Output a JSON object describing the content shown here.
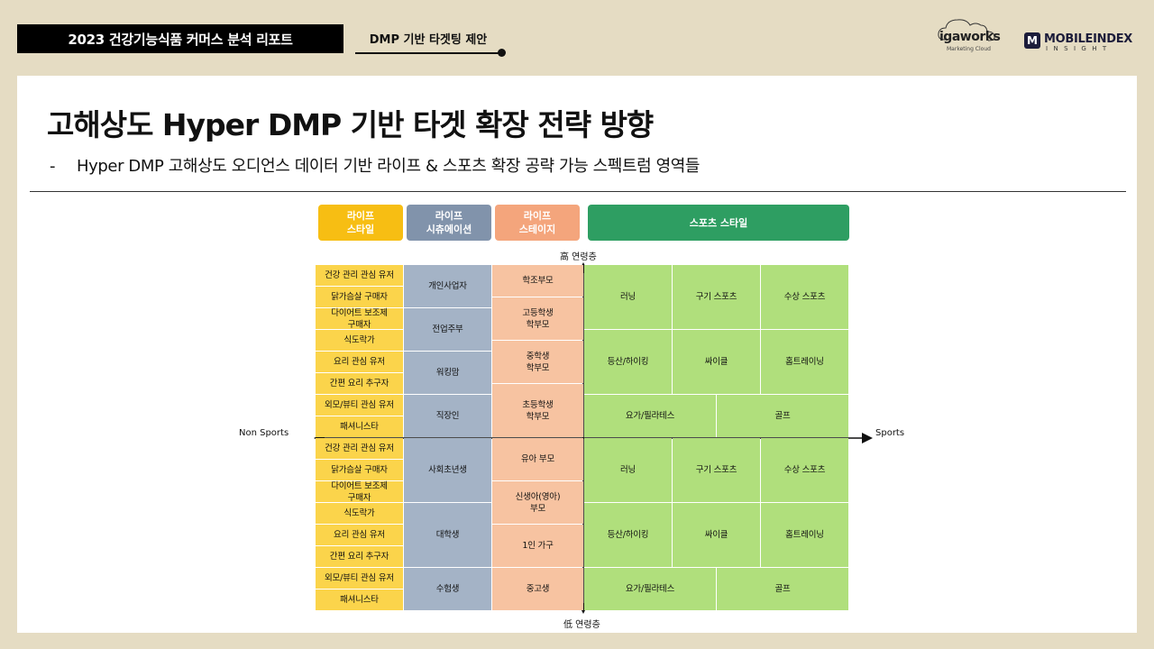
{
  "header": {
    "badge": "2023 건강기능식품 커머스 분석 리포트",
    "section": "DMP 기반 타겟팅 제안"
  },
  "logos": {
    "igaworks": {
      "word": "igaworks",
      "sub": "Marketing Cloud"
    },
    "mobileindex": {
      "mark": "M",
      "word": "MOBILEINDEX",
      "sub": "INSIGHT"
    }
  },
  "title": "고해상도 Hyper DMP 기반 타겟 확장 전략 방향",
  "subtitle": {
    "dash": "-",
    "text": "Hyper DMP 고해상도 오디언스 데이터 기반 라이프 & 스포츠 확장 공략 가능 스펙트럼 영역들"
  },
  "legend": {
    "life_style": "라이프\n스타일",
    "life_situation": "라이프\n시츄에이션",
    "life_stage": "라이프\n스테이지",
    "sports_style": "스포츠 스타일"
  },
  "colors": {
    "yellow": "#fbd44b",
    "blue": "#a4b3c6",
    "orange": "#f7c3a1",
    "green": "#b0df7c",
    "sports_legend": "#2e9e62"
  },
  "axes": {
    "top": "高 연령층",
    "bottom": "低 연령층",
    "left": "Non Sports",
    "right": "Sports"
  },
  "grid": {
    "life_style": [
      "건강 관리 관심 유저",
      "닭가슴살 구매자",
      "다이어트 보조제\n구매자",
      "식도락가",
      "요리 관심 유저",
      "간편 요리 추구자",
      "외모/뷰티 관심 유저",
      "패셔니스타",
      "건강 관리 관심 유저",
      "닭가슴살 구매자",
      "다이어트 보조제\n구매자",
      "식도락가",
      "요리 관심 유저",
      "간편 요리 추구자",
      "외모/뷰티 관심 유저",
      "패셔니스타"
    ],
    "life_situation": [
      "개인사업자",
      "전업주부",
      "워킹맘",
      "직장인",
      "사회초년생",
      "대학생",
      "수험생"
    ],
    "life_stage": [
      "학조부모",
      "고등학생\n학부모",
      "중학생\n학부모",
      "초등학생\n학부모",
      "유아 부모",
      "신생아(영아)\n부모",
      "1인 가구",
      "중고생"
    ],
    "sports": {
      "top_row1": [
        "러닝",
        "구기 스포츠",
        "수상 스포츠"
      ],
      "top_row2": [
        "등산/하이킹",
        "싸이클",
        "홈트레이닝"
      ],
      "top_row3": [
        "요가/필라테스",
        "골프"
      ],
      "bottom_row1": [
        "러닝",
        "구기 스포츠",
        "수상 스포츠"
      ],
      "bottom_row2": [
        "등산/하이킹",
        "싸이클",
        "홈트레이닝"
      ],
      "bottom_row3": [
        "요가/필라테스",
        "골프"
      ]
    }
  }
}
